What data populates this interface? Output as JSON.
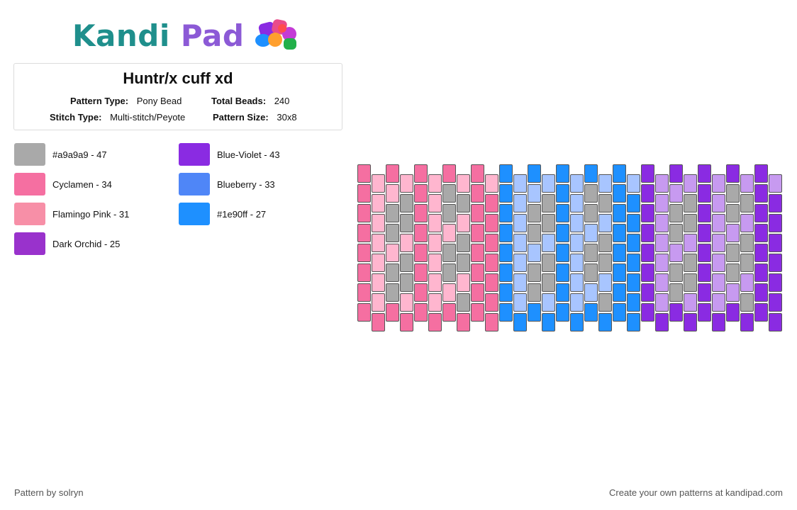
{
  "logo": {
    "text_part1": "Kandi",
    "text_part2": "Pad"
  },
  "pattern": {
    "title": "Huntr/x cuff xd",
    "type_label": "Pattern Type:",
    "type_value": "Pony Bead",
    "beads_label": "Total Beads:",
    "beads_value": "240",
    "stitch_label": "Stitch Type:",
    "stitch_value": "Multi-stitch/Peyote",
    "size_label": "Pattern Size:",
    "size_value": "30x8"
  },
  "legend": [
    {
      "label": "#a9a9a9 - 47",
      "color": "#a9a9a9"
    },
    {
      "label": "Cyclamen - 34",
      "color": "#f56fa1"
    },
    {
      "label": "Flamingo Pink - 31",
      "color": "#f78fa7"
    },
    {
      "label": "Dark Orchid - 25",
      "color": "#9932cc"
    },
    {
      "label": "Blue-Violet - 43",
      "color": "#8a2be2"
    },
    {
      "label": "Blueberry - 33",
      "color": "#4f86f7"
    },
    {
      "label": "#1e90ff - 27",
      "color": "#1e90ff"
    }
  ],
  "footer": {
    "left": "Pattern by solryn",
    "right": "Create your own patterns at kandipad.com"
  }
}
